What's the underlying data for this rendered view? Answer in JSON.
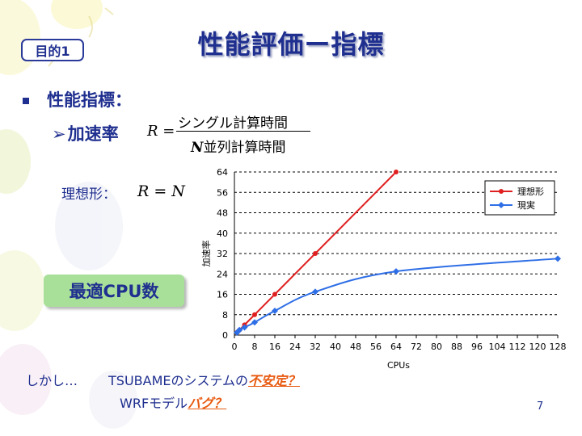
{
  "slide": {
    "tag": "目的1",
    "title": "性能評価ー指標",
    "bullet_text": "性能指標：",
    "sub_bullet": "加速率",
    "formula": {
      "lhs": "R =",
      "numerator": "シングル計算時間",
      "denominator_var": "N",
      "denominator_text": "並列計算時間"
    },
    "ideal_label": "理想形：",
    "ideal_formula": "R = N",
    "optimal_box": "最適CPU数",
    "bottom_line1_prefix": "しかし…",
    "bottom_line1_text": "TSUBAMEのシステムの",
    "bottom_line1_emph": "不安定？",
    "bottom_line2_text": "WRFモデル",
    "bottom_line2_emph": "バグ？",
    "page_number": "7"
  },
  "colors": {
    "text_blue": "#1f2f8f",
    "emphasis_orange": "#e85a10",
    "ideal_series": "#e02020",
    "real_series": "#2e6ee6",
    "box_green": "#a8e09a"
  },
  "chart_data": {
    "type": "line",
    "xlabel": "CPUs",
    "ylabel": "加速率",
    "xlim": [
      0,
      128
    ],
    "ylim": [
      0,
      64
    ],
    "x_ticks": [
      0,
      8,
      16,
      24,
      32,
      40,
      48,
      56,
      64,
      72,
      80,
      88,
      96,
      104,
      112,
      120,
      128
    ],
    "y_ticks": [
      0,
      8,
      16,
      24,
      32,
      40,
      48,
      56,
      64
    ],
    "grid": "horizontal-dashed",
    "legend_position": "top-right",
    "series": [
      {
        "name": "理想形",
        "color": "#e02020",
        "marker": "circle",
        "x": [
          1,
          2,
          4,
          8,
          16,
          32,
          64
        ],
        "y": [
          1,
          2,
          4,
          8,
          16,
          32,
          64
        ]
      },
      {
        "name": "現実",
        "color": "#2e6ee6",
        "marker": "diamond",
        "x": [
          1,
          2,
          4,
          8,
          16,
          32,
          64,
          128
        ],
        "y": [
          1.0,
          2.0,
          3.0,
          5.0,
          9.5,
          17.0,
          25.0,
          30.0
        ]
      }
    ]
  }
}
